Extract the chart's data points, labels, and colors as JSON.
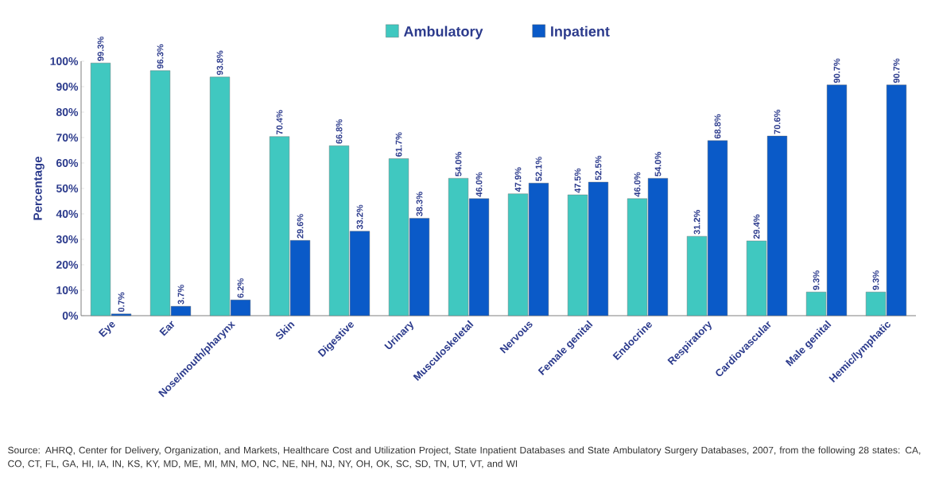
{
  "chart_data": {
    "type": "bar",
    "ylabel": "Percentage",
    "legend": "top",
    "categories": [
      "Eye",
      "Ear",
      "Nose/mouth/pharynx",
      "Skin",
      "Digestive",
      "Urinary",
      "Musculoskeletal",
      "Nervous",
      "Female genital",
      "Endocrine",
      "Respiratory",
      "Cardiovascular",
      "Male genital",
      "Hemic/lymphatic"
    ],
    "series": [
      {
        "name": "Ambulatory",
        "color": "#40c8c0",
        "values": [
          99.3,
          96.3,
          93.8,
          70.4,
          66.8,
          61.7,
          54.0,
          47.9,
          47.5,
          46.0,
          31.2,
          29.4,
          9.3,
          9.3
        ],
        "value_labels": [
          "99.3%",
          "96.3%",
          "93.8%",
          "70.4%",
          "66.8%",
          "61.7%",
          "54.0%",
          "47.9%",
          "47.5%",
          "46.0%",
          "31.2%",
          "29.4%",
          "9.3%",
          "9.3%"
        ]
      },
      {
        "name": "Inpatient",
        "color": "#0a5ac8",
        "values": [
          0.7,
          3.7,
          6.2,
          29.6,
          33.2,
          38.3,
          46.0,
          52.1,
          52.5,
          54.0,
          68.8,
          70.6,
          90.7,
          90.7
        ],
        "value_labels": [
          "0.7%",
          "3.7%",
          "6.2%",
          "29.6%",
          "33.2%",
          "38.3%",
          "46.0%",
          "52.1%",
          "52.5%",
          "54.0%",
          "68.8%",
          "70.6%",
          "90.7%",
          "90.7%"
        ]
      }
    ],
    "ylim": [
      0,
      100
    ],
    "yticks": [
      {
        "value": 0,
        "label": "0%"
      },
      {
        "value": 10,
        "label": "10%"
      },
      {
        "value": 20,
        "label": "20%"
      },
      {
        "value": 30,
        "label": "30%"
      },
      {
        "value": 40,
        "label": "40%"
      },
      {
        "value": 50,
        "label": "50%"
      },
      {
        "value": 60,
        "label": "60%"
      },
      {
        "value": 70,
        "label": "70%"
      },
      {
        "value": 80,
        "label": "80%"
      },
      {
        "value": 90,
        "label": "90%"
      },
      {
        "value": 100,
        "label": "100%"
      }
    ],
    "annotations": [
      "Source: AHRQ, Center for Delivery, Organization, and Markets, Healthcare Cost and Utilization Project, State Inpatient Databases and State Ambulatory Surgery Databases, 2007, from the following 28 states: CA, CO, CT, FL, GA, HI, IA, IN, KS, KY, MD, ME, MI, MN, MO, NC, NE, NH, NJ, NY, OH, OK, SC, SD, TN, UT, VT, and WI"
    ]
  }
}
